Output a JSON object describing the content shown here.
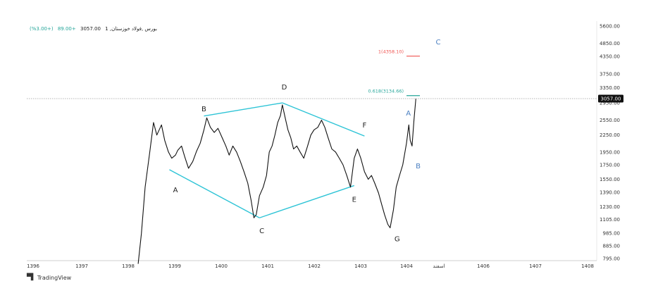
{
  "header": {
    "symbol": "فولاد خوزستان",
    "market": "بورس",
    "interval": "1",
    "price": "3057.00",
    "change": "+89.00",
    "change_pct": "(+3.00%)",
    "symbol_text": "بورس ,فولاد خوزستان, 1"
  },
  "branding": {
    "logo_text": "TradingView",
    "logo_icon": "tradingview-icon"
  },
  "chart_data": {
    "type": "line",
    "grid": false,
    "y_ticks": [
      "5600.00",
      "4850.00",
      "4350.00",
      "3750.00",
      "3350.00",
      "2950.00",
      "2550.00",
      "2250.00",
      "1950.00",
      "1750.00",
      "1550.00",
      "1390.00",
      "1230.00",
      "1105.00",
      "985.00",
      "885.00",
      "795.00"
    ],
    "x_ticks": [
      "1396",
      "1397",
      "1398",
      "1399",
      "1400",
      "1401",
      "1402",
      "1403",
      "1404",
      "اسفند",
      "1406",
      "1407",
      "1408"
    ],
    "last_price_label": "3057.00",
    "series": [
      {
        "values": [
          [
            1398.25,
            760
          ],
          [
            1398.32,
            980
          ],
          [
            1398.4,
            1450
          ],
          [
            1398.5,
            1950
          ],
          [
            1398.58,
            2500
          ],
          [
            1398.65,
            2250
          ],
          [
            1398.75,
            2450
          ],
          [
            1398.82,
            2150
          ],
          [
            1398.9,
            1950
          ],
          [
            1398.97,
            1850
          ],
          [
            1399.05,
            1900
          ],
          [
            1399.1,
            1980
          ],
          [
            1399.18,
            2050
          ],
          [
            1399.25,
            1870
          ],
          [
            1399.33,
            1700
          ],
          [
            1399.42,
            1800
          ],
          [
            1399.5,
            1960
          ],
          [
            1399.58,
            2100
          ],
          [
            1399.66,
            2350
          ],
          [
            1399.72,
            2600
          ],
          [
            1399.8,
            2400
          ],
          [
            1399.88,
            2300
          ],
          [
            1399.96,
            2380
          ],
          [
            1400.05,
            2200
          ],
          [
            1400.13,
            2050
          ],
          [
            1400.2,
            1900
          ],
          [
            1400.28,
            2050
          ],
          [
            1400.36,
            1950
          ],
          [
            1400.44,
            1800
          ],
          [
            1400.52,
            1650
          ],
          [
            1400.6,
            1500
          ],
          [
            1400.67,
            1300
          ],
          [
            1400.73,
            1120
          ],
          [
            1400.78,
            1150
          ],
          [
            1400.85,
            1350
          ],
          [
            1400.93,
            1450
          ],
          [
            1401.0,
            1600
          ],
          [
            1401.06,
            1950
          ],
          [
            1401.12,
            2050
          ],
          [
            1401.18,
            2250
          ],
          [
            1401.24,
            2500
          ],
          [
            1401.3,
            2650
          ],
          [
            1401.34,
            2900
          ],
          [
            1401.4,
            2600
          ],
          [
            1401.46,
            2350
          ],
          [
            1401.52,
            2200
          ],
          [
            1401.58,
            2000
          ],
          [
            1401.65,
            2050
          ],
          [
            1401.72,
            1950
          ],
          [
            1401.8,
            1850
          ],
          [
            1401.88,
            2050
          ],
          [
            1401.95,
            2250
          ],
          [
            1402.02,
            2350
          ],
          [
            1402.1,
            2400
          ],
          [
            1402.18,
            2550
          ],
          [
            1402.25,
            2400
          ],
          [
            1402.32,
            2200
          ],
          [
            1402.4,
            2000
          ],
          [
            1402.48,
            1950
          ],
          [
            1402.56,
            1850
          ],
          [
            1402.64,
            1750
          ],
          [
            1402.72,
            1600
          ],
          [
            1402.8,
            1450
          ],
          [
            1402.88,
            1850
          ],
          [
            1402.95,
            2000
          ],
          [
            1403.02,
            1850
          ],
          [
            1403.1,
            1650
          ],
          [
            1403.18,
            1550
          ],
          [
            1403.25,
            1600
          ],
          [
            1403.32,
            1500
          ],
          [
            1403.4,
            1380
          ],
          [
            1403.47,
            1250
          ],
          [
            1403.53,
            1150
          ],
          [
            1403.6,
            1060
          ],
          [
            1403.65,
            1030
          ],
          [
            1403.72,
            1200
          ],
          [
            1403.78,
            1450
          ],
          [
            1403.85,
            1600
          ],
          [
            1403.92,
            1750
          ],
          [
            1404.0,
            2100
          ],
          [
            1404.05,
            2450
          ],
          [
            1404.08,
            2150
          ],
          [
            1404.12,
            2050
          ],
          [
            1404.16,
            2550
          ],
          [
            1404.2,
            3057
          ]
        ]
      }
    ],
    "wave_labels": [
      {
        "text": "A",
        "x": 1399.05,
        "y": 1390,
        "color": "#222222"
      },
      {
        "text": "B",
        "x": 1399.66,
        "y": 2750,
        "color": "#222222"
      },
      {
        "text": "C",
        "x": 1400.9,
        "y": 985,
        "color": "#222222"
      },
      {
        "text": "D",
        "x": 1401.38,
        "y": 3300,
        "color": "#222222"
      },
      {
        "text": "E",
        "x": 1402.88,
        "y": 1280,
        "color": "#222222"
      },
      {
        "text": "F",
        "x": 1403.1,
        "y": 2400,
        "color": "#222222"
      },
      {
        "text": "G",
        "x": 1403.8,
        "y": 920,
        "color": "#222222"
      },
      {
        "text": "A",
        "x": 1404.04,
        "y": 2650,
        "color": "#4a7fc1"
      },
      {
        "text": "B",
        "x": 1404.25,
        "y": 1700,
        "color": "#4a7fc1"
      },
      {
        "text": "C",
        "x": 1404.68,
        "y": 4800,
        "color": "#4a7fc1"
      }
    ],
    "trendlines": [
      {
        "from": [
          1398.92,
          1680
        ],
        "to": [
          1400.85,
          1120
        ],
        "color": "#2ec4d6"
      },
      {
        "from": [
          1400.85,
          1120
        ],
        "to": [
          1402.88,
          1470
        ],
        "color": "#2ec4d6"
      },
      {
        "from": [
          1399.66,
          2640
        ],
        "to": [
          1401.34,
          2950
        ],
        "color": "#2ec4d6"
      },
      {
        "from": [
          1401.34,
          2950
        ],
        "to": [
          1403.1,
          2230
        ],
        "color": "#2ec4d6"
      }
    ],
    "fib_levels": [
      {
        "label": "0.618(3134.66)",
        "value": 3134.66,
        "color": "#26a69a"
      },
      {
        "label": "1(4358.10)",
        "value": 4358.1,
        "color": "#ef5350"
      }
    ]
  }
}
